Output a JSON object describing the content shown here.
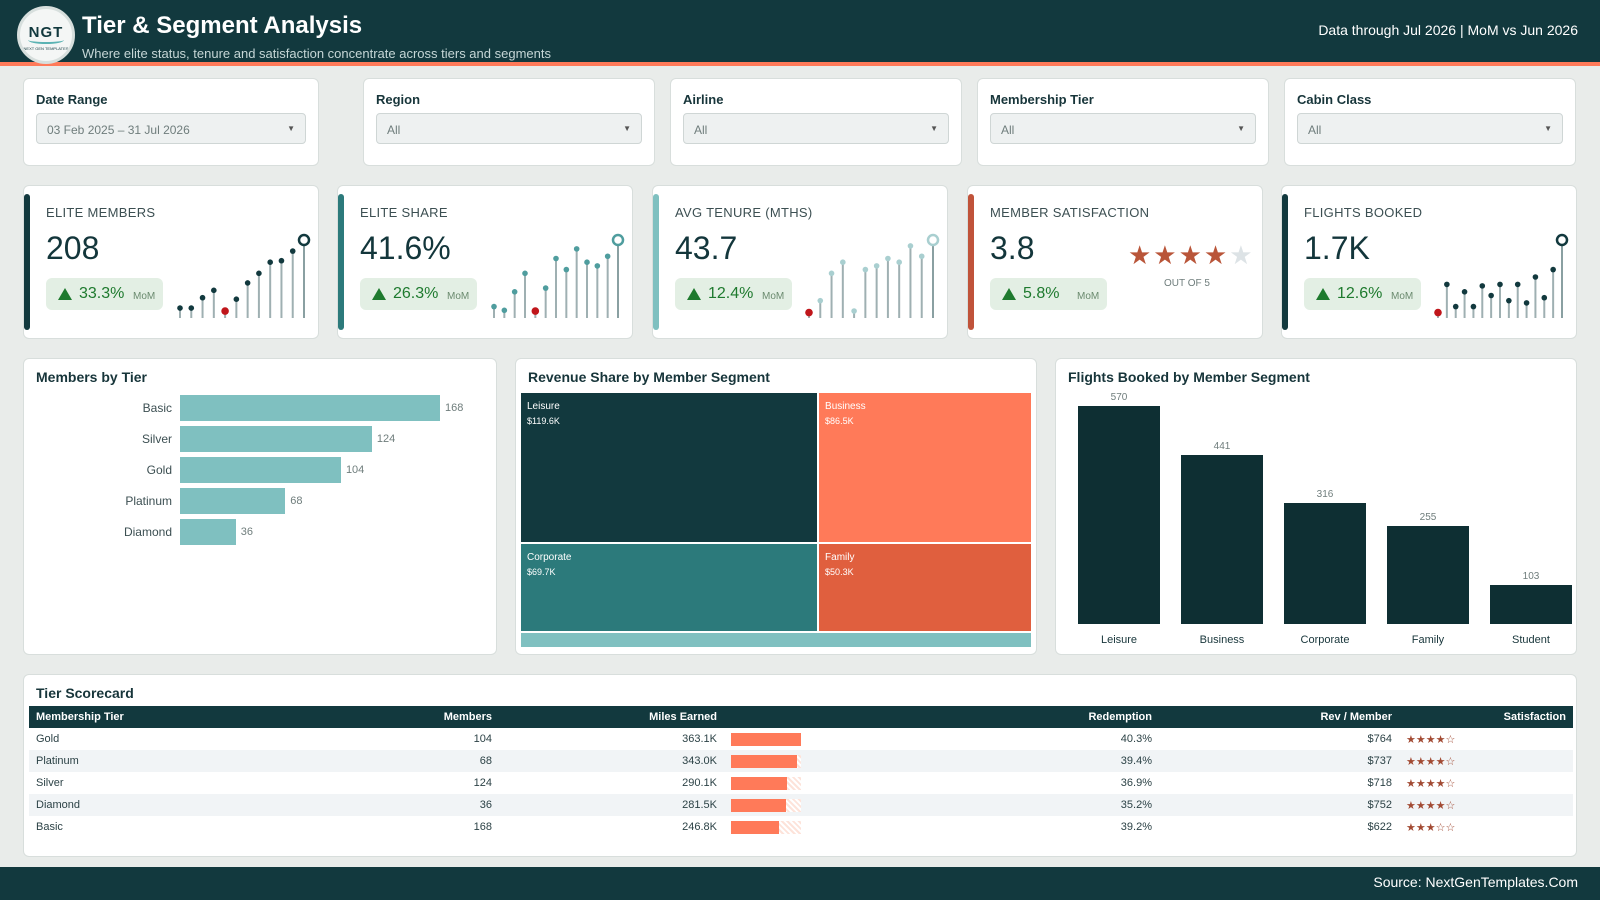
{
  "header": {
    "logo_text": "NGT",
    "logo_subtext": "NEXT GEN TEMPLATES",
    "title": "Tier & Segment Analysis",
    "subtitle": "Where elite status, tenure and satisfaction concentrate across tiers and segments",
    "data_through": "Data through Jul 2026 | MoM vs Jun 2026"
  },
  "filters": [
    {
      "label": "Date Range",
      "value": "03 Feb 2025 – 31 Jul 2026"
    },
    {
      "label": "Region",
      "value": "All"
    },
    {
      "label": "Airline",
      "value": "All"
    },
    {
      "label": "Membership Tier",
      "value": "All"
    },
    {
      "label": "Cabin Class",
      "value": "All"
    }
  ],
  "kpis": [
    {
      "label": "ELITE MEMBERS",
      "value": "208",
      "change": "33.3%",
      "change_label": "MoM",
      "accent": "#12393e",
      "spark": [
        0.08,
        0.08,
        0.22,
        0.32,
        0.04,
        0.2,
        0.42,
        0.55,
        0.7,
        0.72,
        0.85,
        1.0
      ]
    },
    {
      "label": "ELITE SHARE",
      "value": "41.6%",
      "change": "26.3%",
      "change_label": "MoM",
      "accent": "#2c7a7b",
      "spark": [
        0.1,
        0.05,
        0.3,
        0.55,
        0.04,
        0.35,
        0.75,
        0.6,
        0.88,
        0.7,
        0.65,
        0.78,
        1.0
      ]
    },
    {
      "label": "AVG TENURE (MTHS)",
      "value": "43.7",
      "change": "12.4%",
      "change_label": "MoM",
      "accent": "#7fc0c0",
      "spark": [
        0.02,
        0.18,
        0.55,
        0.7,
        0.04,
        0.6,
        0.65,
        0.75,
        0.7,
        0.92,
        0.78,
        1.0
      ]
    },
    {
      "label": "MEMBER SATISFACTION",
      "value": "3.8",
      "change": "5.8%",
      "change_label": "MoM",
      "accent": "#c0533a",
      "stars": "★★★★",
      "star_empty": "★",
      "out_of": "OUT OF 5"
    },
    {
      "label": "FLIGHTS BOOKED",
      "value": "1.7K",
      "change": "12.6%",
      "change_label": "MoM",
      "accent": "#12393e",
      "spark": [
        0.02,
        0.4,
        0.1,
        0.3,
        0.1,
        0.38,
        0.25,
        0.4,
        0.18,
        0.4,
        0.15,
        0.5,
        0.22,
        0.6,
        1.0
      ]
    }
  ],
  "members_by_tier": {
    "title": "Members by Tier",
    "chart_data": {
      "type": "bar",
      "categories": [
        "Basic",
        "Silver",
        "Gold",
        "Platinum",
        "Diamond"
      ],
      "values": [
        168,
        124,
        104,
        68,
        36
      ]
    }
  },
  "revenue_share": {
    "title": "Revenue Share by Member Segment",
    "chart_data": {
      "type": "treemap",
      "categories": [
        "Leisure",
        "Business",
        "Corporate",
        "Family",
        "Student"
      ],
      "labels": [
        "$119.6K",
        "$86.5K",
        "$69.7K",
        "$50.3K",
        ""
      ],
      "values": [
        119.6,
        86.5,
        69.7,
        50.3,
        7.5
      ]
    },
    "colors": [
      "#12393e",
      "#ff7a59",
      "#2c7a7b",
      "#e05f3e",
      "#7fc0c0"
    ]
  },
  "flights_by_segment": {
    "title": "Flights Booked by Member Segment",
    "chart_data": {
      "type": "bar",
      "categories": [
        "Leisure",
        "Business",
        "Corporate",
        "Family",
        "Student"
      ],
      "values": [
        570,
        441,
        316,
        255,
        103
      ]
    }
  },
  "scorecard": {
    "title": "Tier Scorecard",
    "columns": [
      "Membership Tier",
      "Members",
      "Miles Earned",
      "Redemption",
      "Rev / Member",
      "Satisfaction"
    ],
    "rows": [
      {
        "tier": "Gold",
        "members": "104",
        "miles": "363.1K",
        "miles_frac": 1.0,
        "redemption": "40.3%",
        "rev": "$764",
        "stars": "★★★★☆"
      },
      {
        "tier": "Platinum",
        "members": "68",
        "miles": "343.0K",
        "miles_frac": 0.94,
        "redemption": "39.4%",
        "rev": "$737",
        "stars": "★★★★☆"
      },
      {
        "tier": "Silver",
        "members": "124",
        "miles": "290.1K",
        "miles_frac": 0.8,
        "redemption": "36.9%",
        "rev": "$718",
        "stars": "★★★★☆"
      },
      {
        "tier": "Diamond",
        "members": "36",
        "miles": "281.5K",
        "miles_frac": 0.78,
        "redemption": "35.2%",
        "rev": "$752",
        "stars": "★★★★☆"
      },
      {
        "tier": "Basic",
        "members": "168",
        "miles": "246.8K",
        "miles_frac": 0.68,
        "redemption": "39.2%",
        "rev": "$622",
        "stars": "★★★☆☆"
      }
    ]
  },
  "footer": {
    "source": "Source: NextGenTemplates.Com"
  }
}
